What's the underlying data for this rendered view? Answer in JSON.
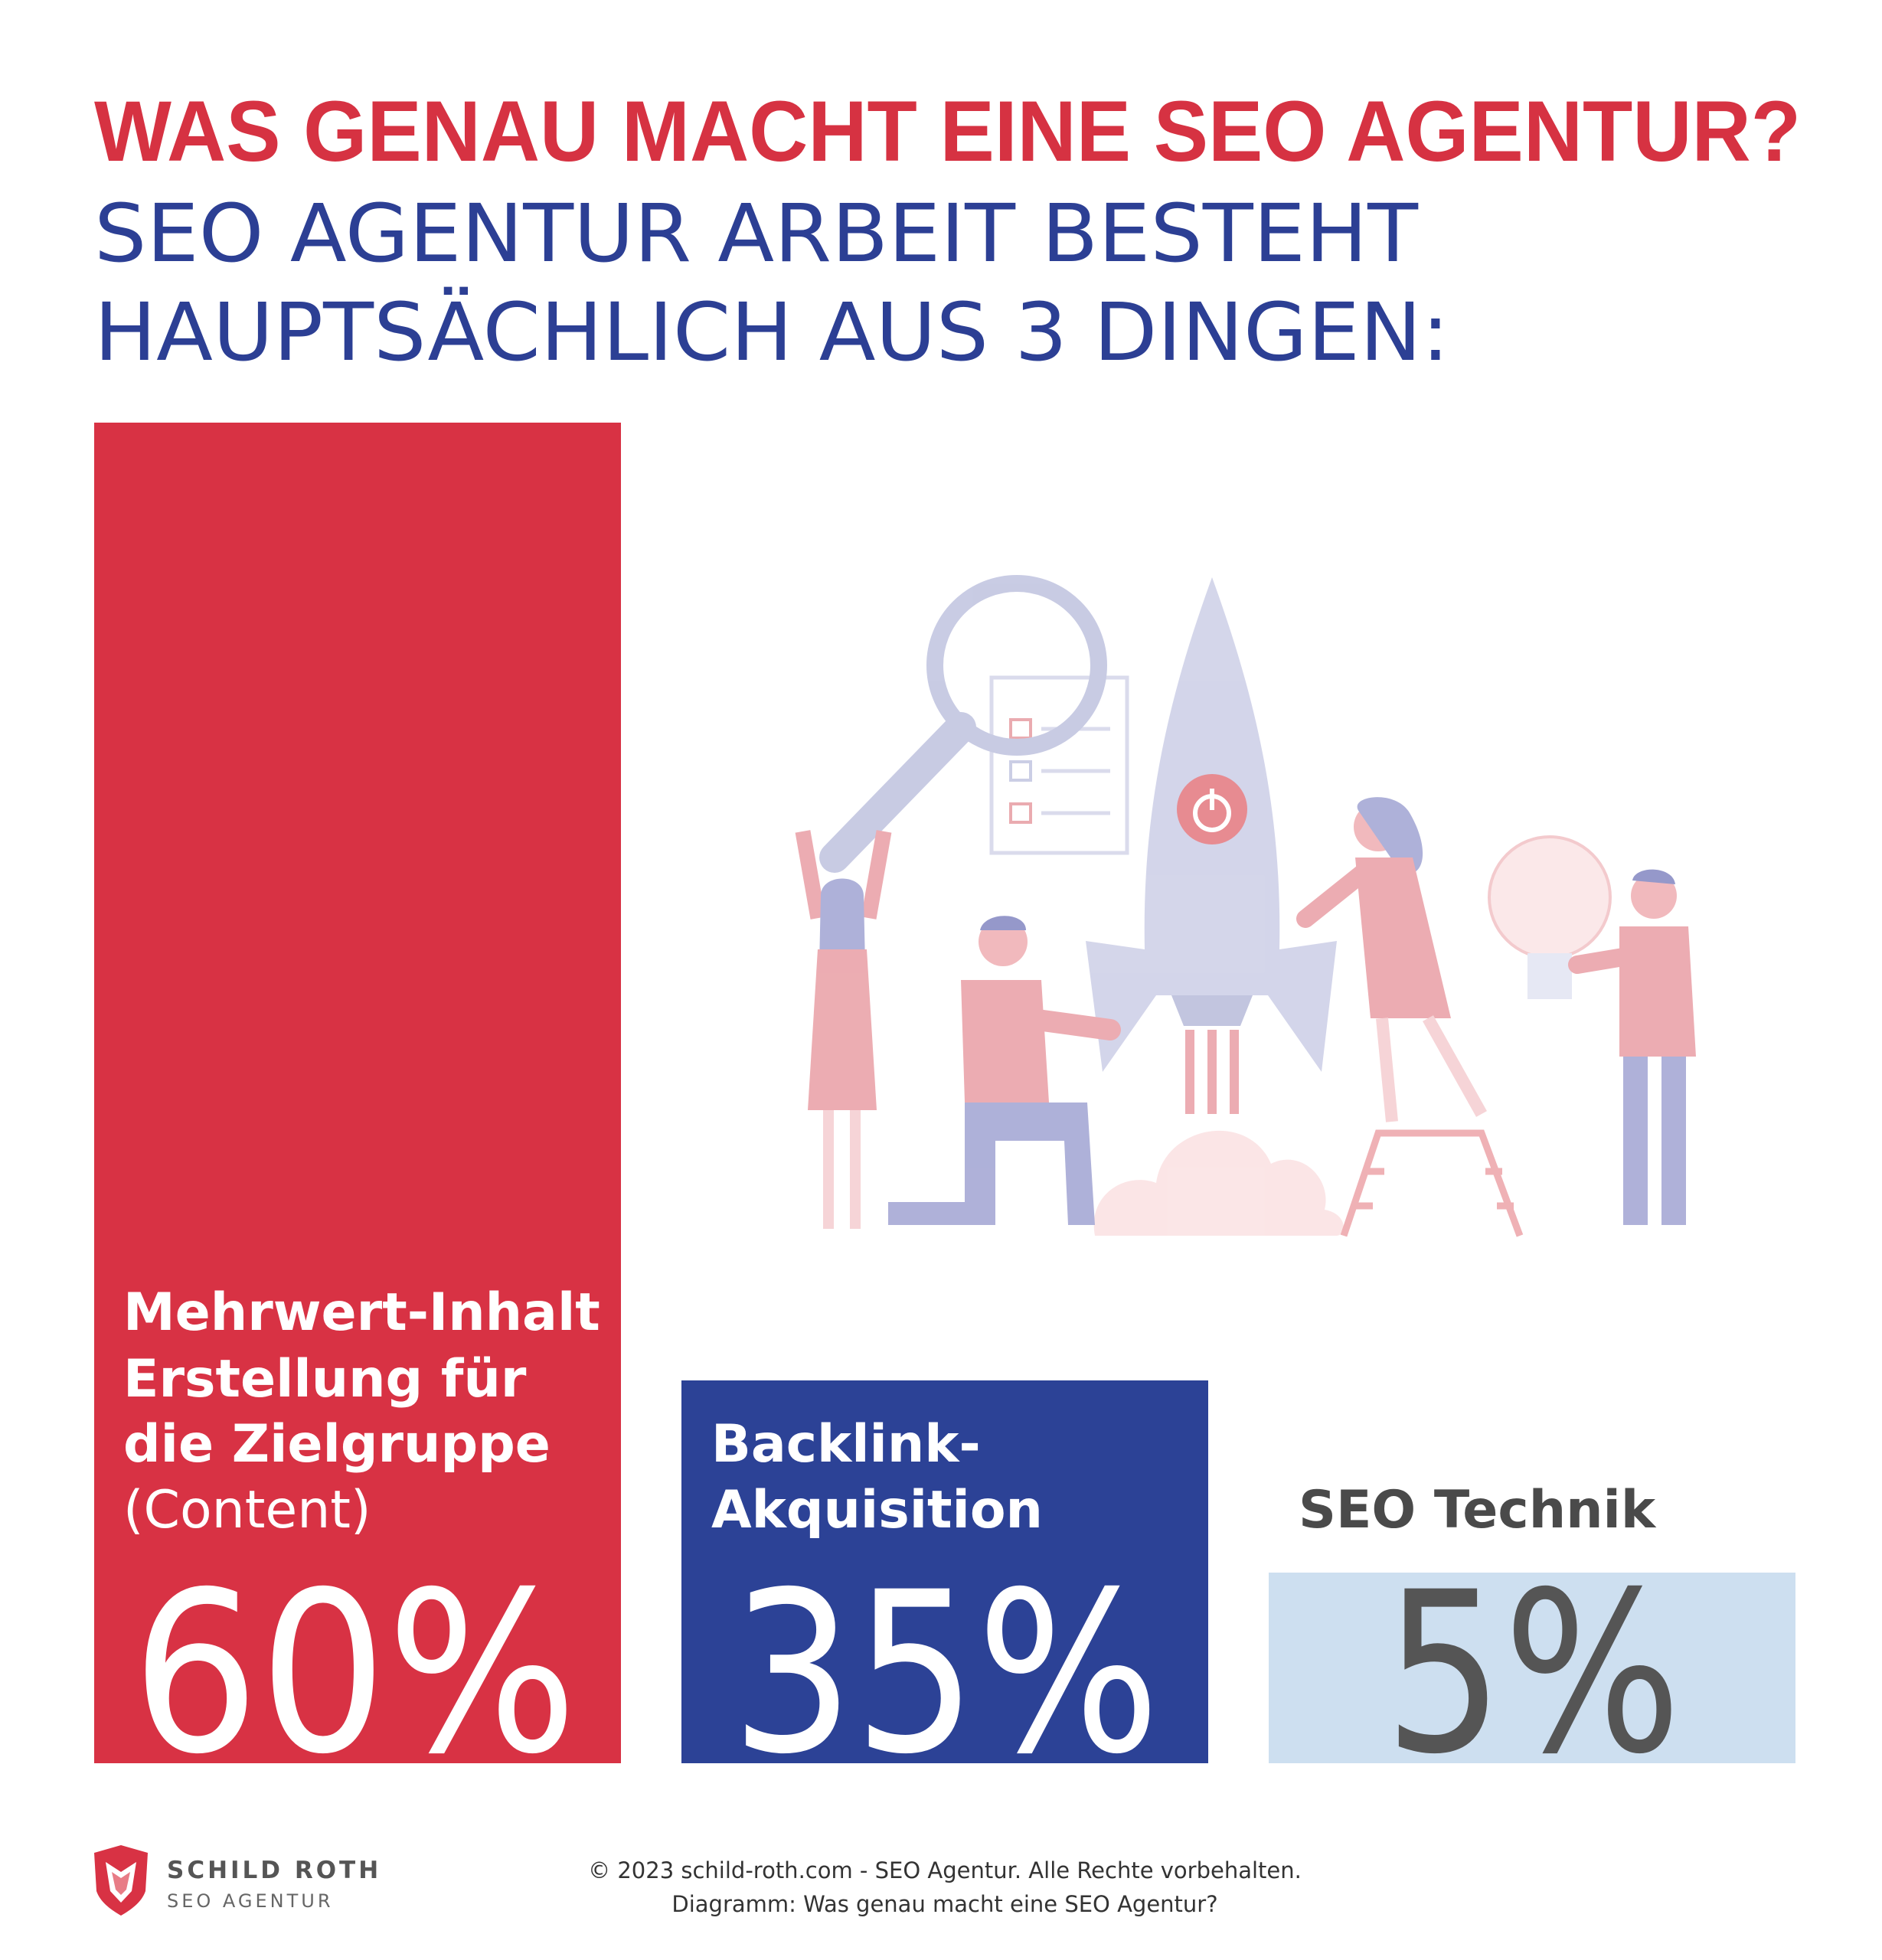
{
  "header": {
    "title": "WAS GENAU MACHT EINE SEO AGENTUR?",
    "subtitle": [
      "SEO AGENTUR ARBEIT BESTEHT",
      "HAUPTSÄCHLICH AUS 3 DINGEN:"
    ]
  },
  "cards": [
    {
      "label": [
        "Mehrwert-Inhalt",
        "Erstellung für",
        "die Zielgruppe"
      ],
      "note": "(Content)",
      "value": "60%"
    },
    {
      "label": [
        "Backlink-",
        "Akquisition"
      ],
      "value": "35%"
    },
    {
      "label": [
        "SEO Technik"
      ],
      "value": "5%"
    }
  ],
  "footer": {
    "brand": "SCHILD ROTH",
    "brand_sub": "SEO AGENTUR",
    "copyright": "© 2023 schild-roth.com - SEO Agentur. Alle Rechte vorbehalten.",
    "caption": "Diagramm: Was genau macht eine SEO Agentur?"
  }
}
